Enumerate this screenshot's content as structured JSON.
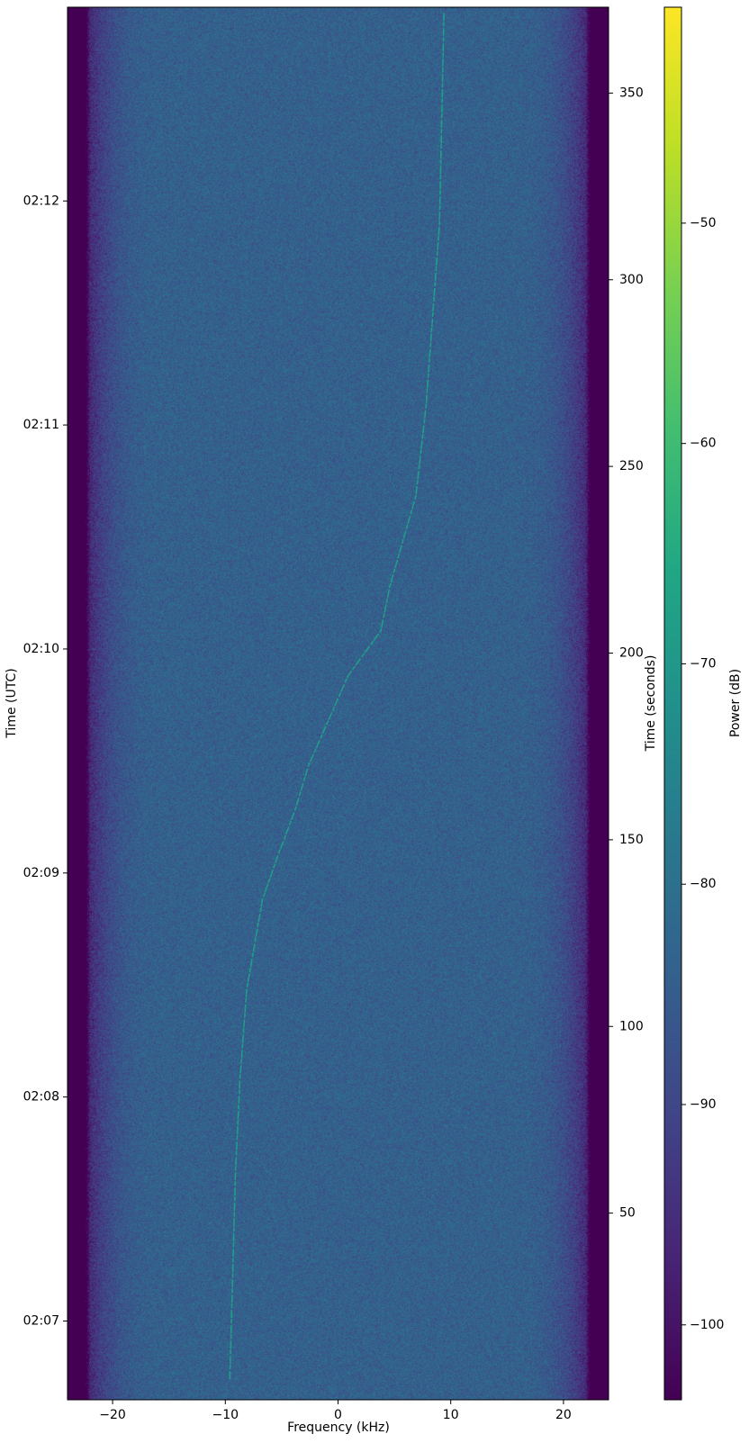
{
  "chart_data": {
    "type": "heatmap",
    "subtype": "spectrogram",
    "title": "",
    "xlabel": "Frequency (kHz)",
    "ylabel_left": "Time (UTC)",
    "ylabel_right": "Time (seconds)",
    "colorbar_label": "Power (dB)",
    "colormap": "viridis",
    "xlim": [
      -24,
      24
    ],
    "ylim_seconds": [
      0,
      373
    ],
    "color_range_db": [
      -103.4,
      -40.2
    ],
    "x_ticks": [
      -20,
      -10,
      0,
      10,
      20
    ],
    "x_tick_labels": [
      "−20",
      "−10",
      "0",
      "10",
      "20"
    ],
    "y_right_ticks": [
      50,
      100,
      150,
      200,
      250,
      300,
      350
    ],
    "y_right_tick_labels": [
      "50",
      "100",
      "150",
      "200",
      "250",
      "300",
      "350"
    ],
    "y_left_tick_seconds": [
      21.1,
      81.1,
      141.1,
      201.1,
      261.1,
      321.1
    ],
    "y_left_tick_labels": [
      "02:07",
      "02:08",
      "02:09",
      "02:10",
      "02:11",
      "02:12"
    ],
    "colorbar_ticks": [
      -100,
      -90,
      -80,
      -70,
      -60,
      -50
    ],
    "colorbar_tick_labels": [
      "−100",
      "−90",
      "−80",
      "−70",
      "−60",
      "−50"
    ],
    "noise_floor_db": -84,
    "band_edge_rolloff_khz": 22,
    "signal_power_db": -68,
    "signal_trace": {
      "time_s": [
        5.5,
        61,
        86,
        110,
        134,
        146,
        158,
        170,
        194,
        206,
        218,
        242,
        266,
        315,
        372
      ],
      "freq_khz": [
        -9.6,
        -9.1,
        -8.7,
        -8.1,
        -6.7,
        -5.3,
        -3.8,
        -2.6,
        0.9,
        3.8,
        4.6,
        6.9,
        7.8,
        9.0,
        9.4
      ]
    },
    "grid": false,
    "legend": "none"
  },
  "colors": {
    "viridis": [
      "#440154",
      "#482475",
      "#414487",
      "#355f8d",
      "#2a788e",
      "#21918c",
      "#22a884",
      "#44bf70",
      "#7ad151",
      "#bddf26",
      "#fde725"
    ]
  }
}
